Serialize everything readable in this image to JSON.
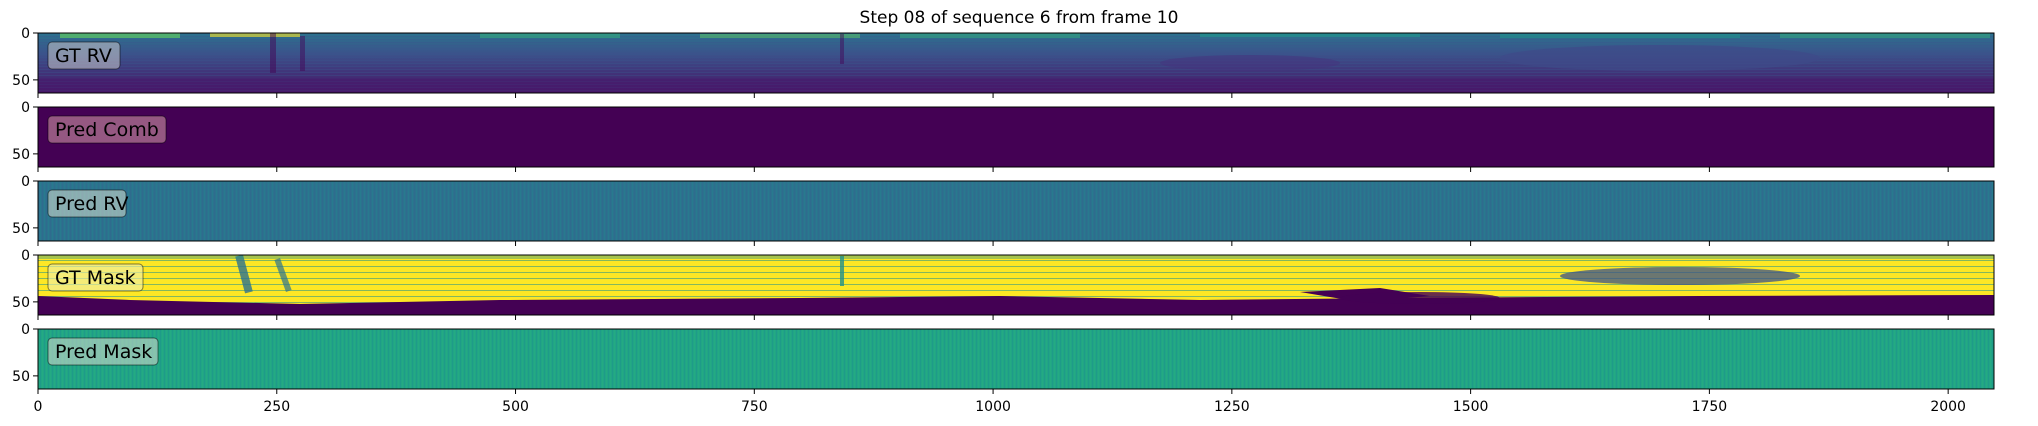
{
  "figure": {
    "title": "Step 08 of sequence 6 from frame 10"
  },
  "chart_data": {
    "type": "heatmap",
    "title": "Step 08 of sequence 6 from frame 10",
    "x_range": [
      0,
      2048
    ],
    "y_range": [
      64,
      0
    ],
    "x_ticks": [
      0,
      250,
      500,
      750,
      1000,
      1250,
      1500,
      1750,
      2000
    ],
    "y_ticks": [
      0,
      50
    ],
    "shared_x": true,
    "colormap": "viridis",
    "panels": [
      {
        "label": "GT RV",
        "description_color": "#3b528b"
      },
      {
        "label": "Pred Comb",
        "description_color": "#440154"
      },
      {
        "label": "Pred RV",
        "description_color": "#2c728e"
      },
      {
        "label": "GT Mask",
        "description_color": "#fde725"
      },
      {
        "label": "Pred Mask",
        "description_color": "#21a585"
      }
    ]
  },
  "colors": {
    "viridis_dark": "#440154",
    "viridis_blue": "#3b528b",
    "viridis_teal": "#2c728e",
    "viridis_green": "#21a585",
    "viridis_yellow": "#fde725"
  }
}
